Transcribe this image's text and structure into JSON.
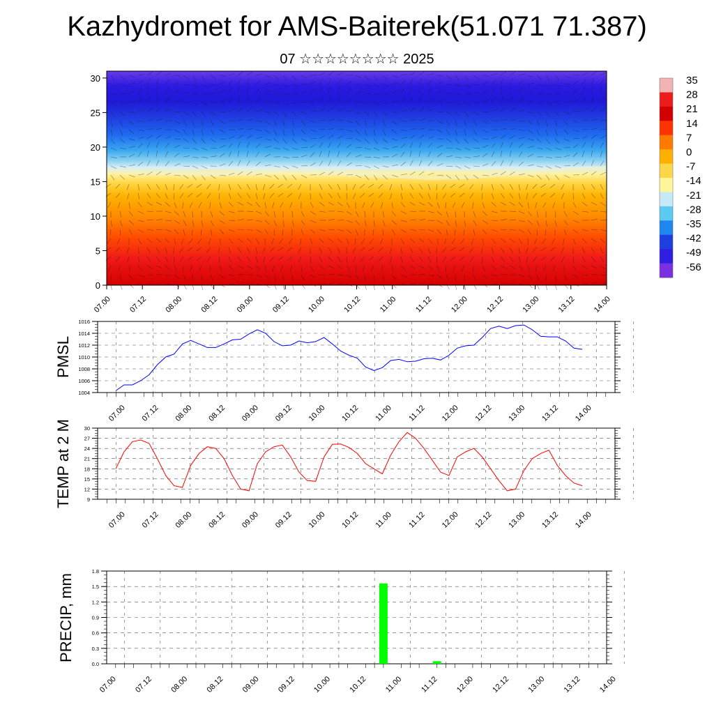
{
  "header": {
    "title": "Kazhydromet for AMS-Baiterek(51.071 71.387)",
    "subtitle": "07 ☆☆☆☆☆☆☆☆ 2025"
  },
  "time_ticks": [
    "07.00",
    "07.12",
    "08.00",
    "08.12",
    "09.00",
    "09.12",
    "10.00",
    "10.12",
    "11.00",
    "11.12",
    "12.00",
    "12.12",
    "13.00",
    "13.12",
    "14.00"
  ],
  "chart_data": [
    {
      "id": "cross_section",
      "type": "heatmap",
      "title": "",
      "xlabel": "",
      "ylabel": "",
      "x_ticks": [
        "07.00",
        "07.12",
        "08.00",
        "08.12",
        "09.00",
        "09.12",
        "10.00",
        "10.12",
        "11.00",
        "11.12",
        "12.00",
        "12.12",
        "13.00",
        "13.12",
        "14.00"
      ],
      "ylim": [
        0,
        31
      ],
      "y_ticks": [
        0,
        5,
        10,
        15,
        20,
        25,
        30
      ],
      "colorbar": {
        "labels": [
          "35",
          "28",
          "21",
          "14",
          "7",
          "0",
          "-7",
          "-14",
          "-21",
          "-28",
          "-35",
          "-42",
          "-49",
          "-56"
        ],
        "colors": [
          "#f2b3b3",
          "#ec1c1c",
          "#d40000",
          "#ff3300",
          "#ff7a00",
          "#ffb000",
          "#ffd54a",
          "#fff59a",
          "#c8eaf8",
          "#5ccaf2",
          "#1f86f0",
          "#1f3ee0",
          "#2f1fe0",
          "#7a2fe0"
        ]
      },
      "freezing_level": [
        16.5,
        16.3,
        16.2,
        16.0,
        16.2,
        16.5,
        16.3,
        16.0,
        15.8,
        15.5,
        15.6,
        16.0,
        16.4,
        16.8,
        17.0
      ],
      "overlay": "wind barbs"
    },
    {
      "id": "pmsl",
      "type": "line",
      "ylabel": "PMSL",
      "ylim": [
        1004,
        1016
      ],
      "y_ticks": [
        1004,
        1006,
        1008,
        1010,
        1012,
        1014,
        1016
      ],
      "color": "#0000ff",
      "values": [
        1004.3,
        1005.3,
        1005.3,
        1006.0,
        1007.0,
        1008.7,
        1010.0,
        1010.5,
        1012.2,
        1012.8,
        1012.2,
        1011.6,
        1011.6,
        1012.2,
        1012.9,
        1013.0,
        1013.9,
        1014.6,
        1014.0,
        1012.6,
        1011.9,
        1012.0,
        1012.7,
        1012.4,
        1012.6,
        1013.3,
        1012.2,
        1011.0,
        1010.3,
        1009.8,
        1008.3,
        1007.7,
        1008.2,
        1009.4,
        1009.6,
        1009.2,
        1009.3,
        1009.7,
        1009.8,
        1009.5,
        1010.3,
        1011.5,
        1011.9,
        1012.0,
        1013.3,
        1014.8,
        1015.2,
        1014.8,
        1015.3,
        1015.4,
        1014.6,
        1013.5,
        1013.4,
        1013.4,
        1012.7,
        1011.5,
        1011.3
      ]
    },
    {
      "id": "temp2m",
      "type": "line",
      "ylabel": "TEMP at 2 M",
      "ylim": [
        9,
        30
      ],
      "y_ticks": [
        9,
        12,
        15,
        18,
        21,
        24,
        27,
        30
      ],
      "color": "#ff0000",
      "values": [
        18.0,
        23.0,
        26.0,
        26.5,
        25.5,
        21.0,
        16.0,
        13.0,
        12.5,
        19.0,
        22.5,
        24.5,
        24.0,
        21.0,
        16.0,
        12.0,
        11.5,
        19.5,
        23.0,
        24.5,
        25.0,
        21.5,
        17.0,
        14.5,
        14.3,
        21.5,
        25.2,
        25.3,
        24.3,
        22.5,
        19.5,
        18.0,
        16.5,
        22.0,
        26.0,
        28.7,
        27.0,
        24.0,
        20.5,
        17.0,
        16.0,
        21.5,
        23.0,
        24.0,
        21.5,
        18.0,
        14.5,
        11.5,
        12.0,
        17.5,
        21.0,
        22.5,
        23.5,
        19.0,
        16.0,
        13.8,
        13.0
      ]
    },
    {
      "id": "precip",
      "type": "bar",
      "ylabel": "PRECIP, mm",
      "ylim": [
        0.0,
        1.8
      ],
      "y_ticks": [
        "0.0",
        "0.3",
        "0.6",
        "0.9",
        "1.2",
        "1.5",
        "1.8"
      ],
      "color": "#00ff00",
      "bars": [
        {
          "x": "10.21",
          "value": 1.56
        },
        {
          "x": "11.15",
          "value": 0.05
        }
      ]
    }
  ]
}
